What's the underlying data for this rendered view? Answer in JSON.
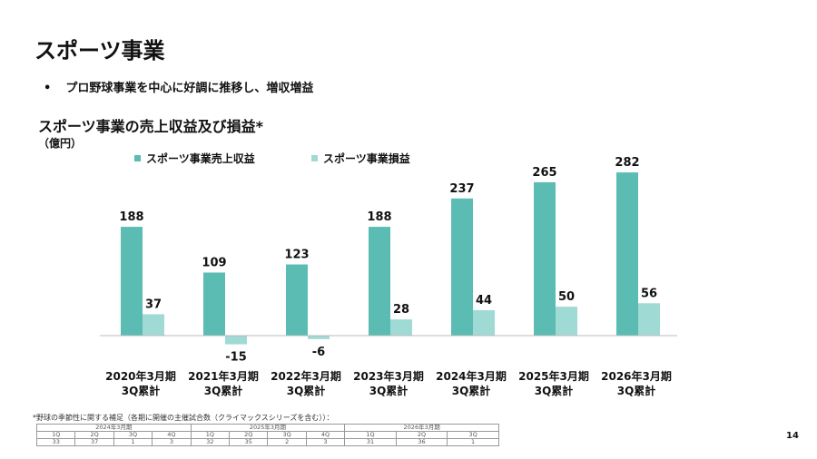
{
  "title": "スポーツ事業",
  "bullet": "プロ野球事業を中心に好調に推移し、増収増益",
  "chart_data": {
    "type": "bar",
    "title": "スポーツ事業の売上収益及び損益*",
    "unit": "（億円）",
    "categories": [
      [
        "2020年3月期",
        "3Q累計"
      ],
      [
        "2021年3月期",
        "3Q累計"
      ],
      [
        "2022年3月期",
        "3Q累計"
      ],
      [
        "2023年3月期",
        "3Q累計"
      ],
      [
        "2024年3月期",
        "3Q累計"
      ],
      [
        "2025年3月期",
        "3Q累計"
      ],
      [
        "2026年3月期",
        "3Q累計"
      ]
    ],
    "series": [
      {
        "name": "スポーツ事業売上収益",
        "color": "#5bbcb3",
        "values": [
          188,
          109,
          123,
          188,
          237,
          265,
          282
        ]
      },
      {
        "name": "スポーツ事業損益",
        "color": "#a0dad5",
        "values": [
          37,
          -15,
          -6,
          28,
          44,
          50,
          56
        ]
      }
    ]
  },
  "note": "*野球の季節性に関する補足（各期に開催の主催試合数（クライマックスシリーズを含む））：",
  "season_table": {
    "years": [
      {
        "label": "2024年3月期",
        "span": 4
      },
      {
        "label": "2025年3月期",
        "span": 4
      },
      {
        "label": "2026年3月期",
        "span": 3
      }
    ],
    "quarters": [
      "1Q",
      "2Q",
      "3Q",
      "4Q",
      "1Q",
      "2Q",
      "3Q",
      "4Q",
      "1Q",
      "2Q",
      "3Q"
    ],
    "values": [
      "33",
      "37",
      "1",
      "3",
      "32",
      "35",
      "2",
      "3",
      "31",
      "36",
      "1"
    ]
  },
  "page_number": "14"
}
